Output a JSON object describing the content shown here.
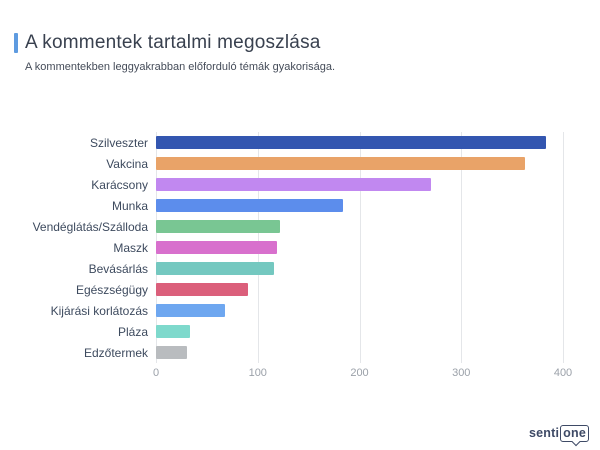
{
  "header": {
    "title": "A kommentek tartalmi megoszlása",
    "subtitle": "A kommentekben leggyakrabban előforduló témák gyakorisága.",
    "accent_color": "#5e9be0"
  },
  "chart_data": {
    "type": "bar",
    "orientation": "horizontal",
    "title": "A kommentek tartalmi megoszlása",
    "subtitle": "A kommentekben leggyakrabban előforduló témák gyakorisága.",
    "xlabel": "",
    "ylabel": "",
    "categories": [
      "Szilveszter",
      "Vakcina",
      "Karácsony",
      "Munka",
      "Vendéglátás/Szálloda",
      "Maszk",
      "Bevásárlás",
      "Egészségügy",
      "Kijárási korlátozás",
      "Pláza",
      "Edzőtermek"
    ],
    "values": [
      383,
      363,
      270,
      184,
      122,
      119,
      116,
      90,
      68,
      33,
      30
    ],
    "bar_colors": [
      "#3356b0",
      "#e9a368",
      "#c188f0",
      "#5c8dec",
      "#79c693",
      "#d870cd",
      "#74c8c0",
      "#db5f7b",
      "#6ea7f0",
      "#7ed9cc",
      "#b9bcbf"
    ],
    "x_ticks": [
      0,
      100,
      200,
      300,
      400
    ],
    "xlim": [
      0,
      417
    ],
    "grid": true,
    "gridline_color": "#e4e6e9",
    "legend": false
  },
  "branding": {
    "logo_text_plain": "senti",
    "logo_text_boxed": "one",
    "logo_color": "#3e4a66"
  }
}
